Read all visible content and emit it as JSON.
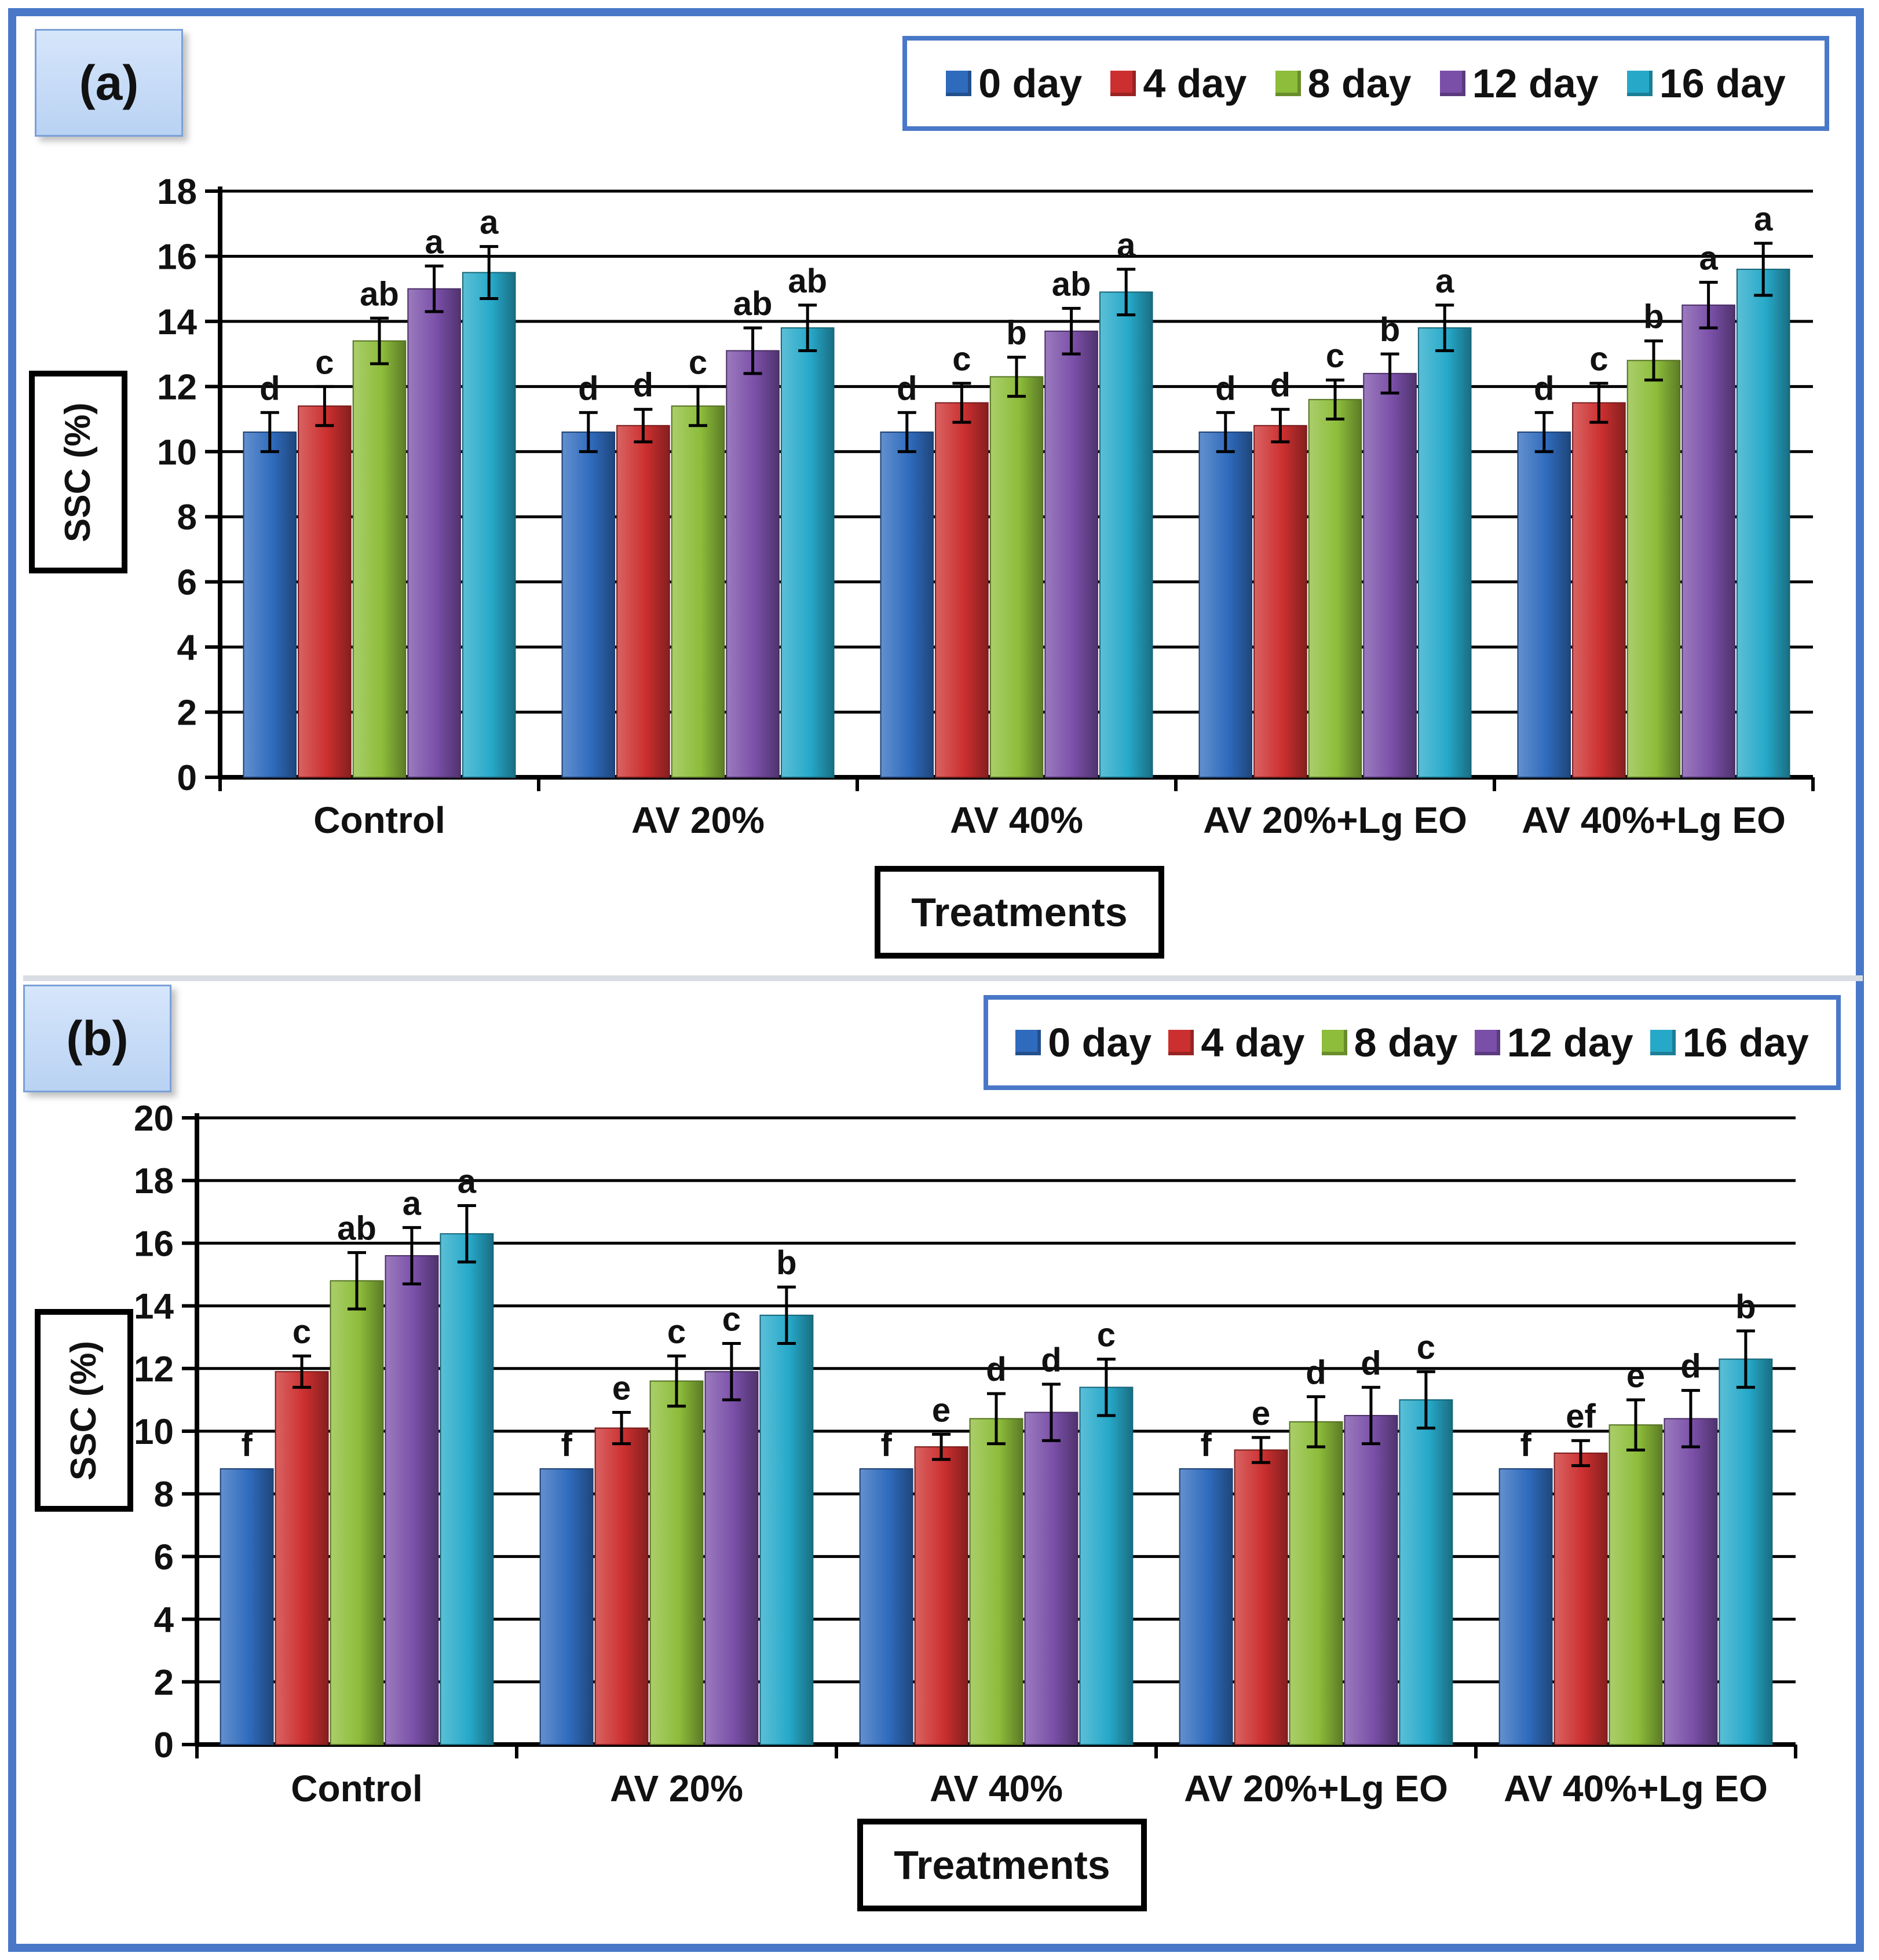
{
  "figure": {
    "legend_colors": [
      "#2f6bbd",
      "#cc2f2f",
      "#8dbd3a",
      "#7a4fa8",
      "#26a9c9"
    ]
  },
  "panels": [
    {
      "label": "(a)",
      "ylabel": "SSC (%)",
      "xlabel": "Treatments"
    },
    {
      "label": "(b)",
      "ylabel": "SSC (%)",
      "xlabel": "Treatments"
    }
  ],
  "chart_data": [
    {
      "type": "bar",
      "title": "(a)",
      "xlabel": "Treatments",
      "ylabel": "SSC (%)",
      "ylim": [
        0,
        18
      ],
      "yticks": [
        0,
        2,
        4,
        6,
        8,
        10,
        12,
        14,
        16,
        18
      ],
      "grid": true,
      "legend_position": "top-right",
      "categories": [
        "Control",
        "AV 20%",
        "AV 40%",
        "AV 20%+Lg EO",
        "AV 40%+Lg EO"
      ],
      "series": [
        {
          "name": "0 day",
          "values": [
            10.6,
            10.6,
            10.6,
            10.6,
            10.6
          ],
          "errors": [
            0.6,
            0.6,
            0.6,
            0.6,
            0.6
          ],
          "letters": [
            "d",
            "d",
            "d",
            "d",
            "d"
          ]
        },
        {
          "name": "4 day",
          "values": [
            11.4,
            10.8,
            11.5,
            10.8,
            11.5
          ],
          "errors": [
            0.6,
            0.5,
            0.6,
            0.5,
            0.6
          ],
          "letters": [
            "c",
            "d",
            "c",
            "d",
            "c"
          ]
        },
        {
          "name": "8 day",
          "values": [
            13.4,
            11.4,
            12.3,
            11.6,
            12.8
          ],
          "errors": [
            0.7,
            0.6,
            0.6,
            0.6,
            0.6
          ],
          "letters": [
            "ab",
            "c",
            "b",
            "c",
            "b"
          ]
        },
        {
          "name": "12 day",
          "values": [
            15.0,
            13.1,
            13.7,
            12.4,
            14.5
          ],
          "errors": [
            0.7,
            0.7,
            0.7,
            0.6,
            0.7
          ],
          "letters": [
            "a",
            "ab",
            "ab",
            "b",
            "a"
          ]
        },
        {
          "name": "16 day",
          "values": [
            15.5,
            13.8,
            14.9,
            13.8,
            15.6
          ],
          "errors": [
            0.8,
            0.7,
            0.7,
            0.7,
            0.8
          ],
          "letters": [
            "a",
            "ab",
            "a",
            "a",
            "a"
          ]
        }
      ]
    },
    {
      "type": "bar",
      "title": "(b)",
      "xlabel": "Treatments",
      "ylabel": "SSC (%)",
      "ylim": [
        0,
        20
      ],
      "yticks": [
        0,
        2,
        4,
        6,
        8,
        10,
        12,
        14,
        16,
        18,
        20
      ],
      "grid": true,
      "legend_position": "top-right",
      "categories": [
        "Control",
        "AV 20%",
        "AV 40%",
        "AV 20%+Lg EO",
        "AV 40%+Lg EO"
      ],
      "series": [
        {
          "name": "0 day",
          "values": [
            8.8,
            8.8,
            8.8,
            8.8,
            8.8
          ],
          "errors": [
            0,
            0,
            0,
            0,
            0
          ],
          "letters": [
            "f",
            "f",
            "f",
            "f",
            "f"
          ]
        },
        {
          "name": "4 day",
          "values": [
            11.9,
            10.1,
            9.5,
            9.4,
            9.3
          ],
          "errors": [
            0.5,
            0.5,
            0.4,
            0.4,
            0.4
          ],
          "letters": [
            "c",
            "e",
            "e",
            "e",
            "ef"
          ]
        },
        {
          "name": "8 day",
          "values": [
            14.8,
            11.6,
            10.4,
            10.3,
            10.2
          ],
          "errors": [
            0.9,
            0.8,
            0.8,
            0.8,
            0.8
          ],
          "letters": [
            "ab",
            "c",
            "d",
            "d",
            "e"
          ]
        },
        {
          "name": "12 day",
          "values": [
            15.6,
            11.9,
            10.6,
            10.5,
            10.4
          ],
          "errors": [
            0.9,
            0.9,
            0.9,
            0.9,
            0.9
          ],
          "letters": [
            "a",
            "c",
            "d",
            "d",
            "d"
          ]
        },
        {
          "name": "16 day",
          "values": [
            16.3,
            13.7,
            11.4,
            11.0,
            12.3
          ],
          "errors": [
            0.9,
            0.9,
            0.9,
            0.9,
            0.9
          ],
          "letters": [
            "a",
            "b",
            "c",
            "c",
            "b"
          ]
        }
      ]
    }
  ]
}
